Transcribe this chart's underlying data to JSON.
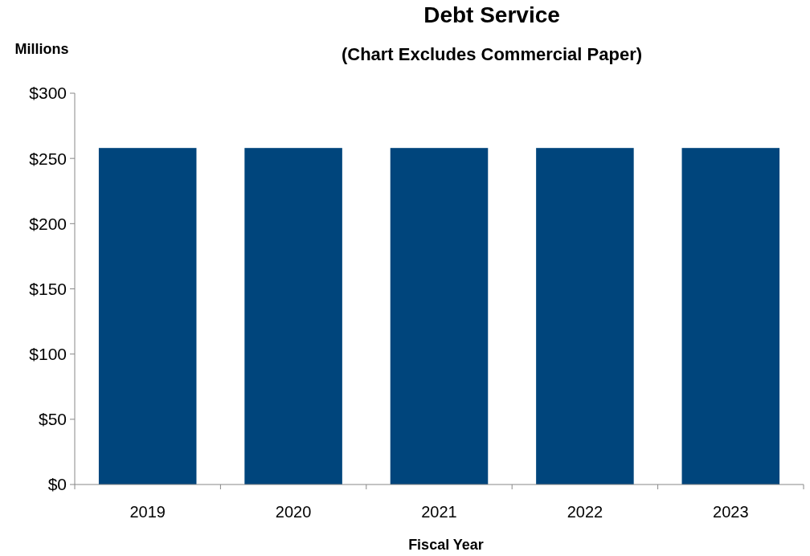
{
  "chart_data": {
    "type": "bar",
    "title": "Debt Service",
    "subtitle": "(Chart Excludes Commercial Paper)",
    "ylabel": "Millions",
    "xlabel": "Fiscal Year",
    "categories": [
      "2019",
      "2020",
      "2021",
      "2022",
      "2023"
    ],
    "values": [
      258,
      258,
      258,
      258,
      258
    ],
    "color": "#00457c",
    "ylim": [
      0,
      300
    ],
    "yticks": [
      {
        "value": 0,
        "label": "$0"
      },
      {
        "value": 50,
        "label": "$50"
      },
      {
        "value": 100,
        "label": "$100"
      },
      {
        "value": 150,
        "label": "$150"
      },
      {
        "value": 200,
        "label": "$200"
      },
      {
        "value": 250,
        "label": "$250"
      },
      {
        "value": 300,
        "label": "$300"
      }
    ],
    "grid": false
  }
}
